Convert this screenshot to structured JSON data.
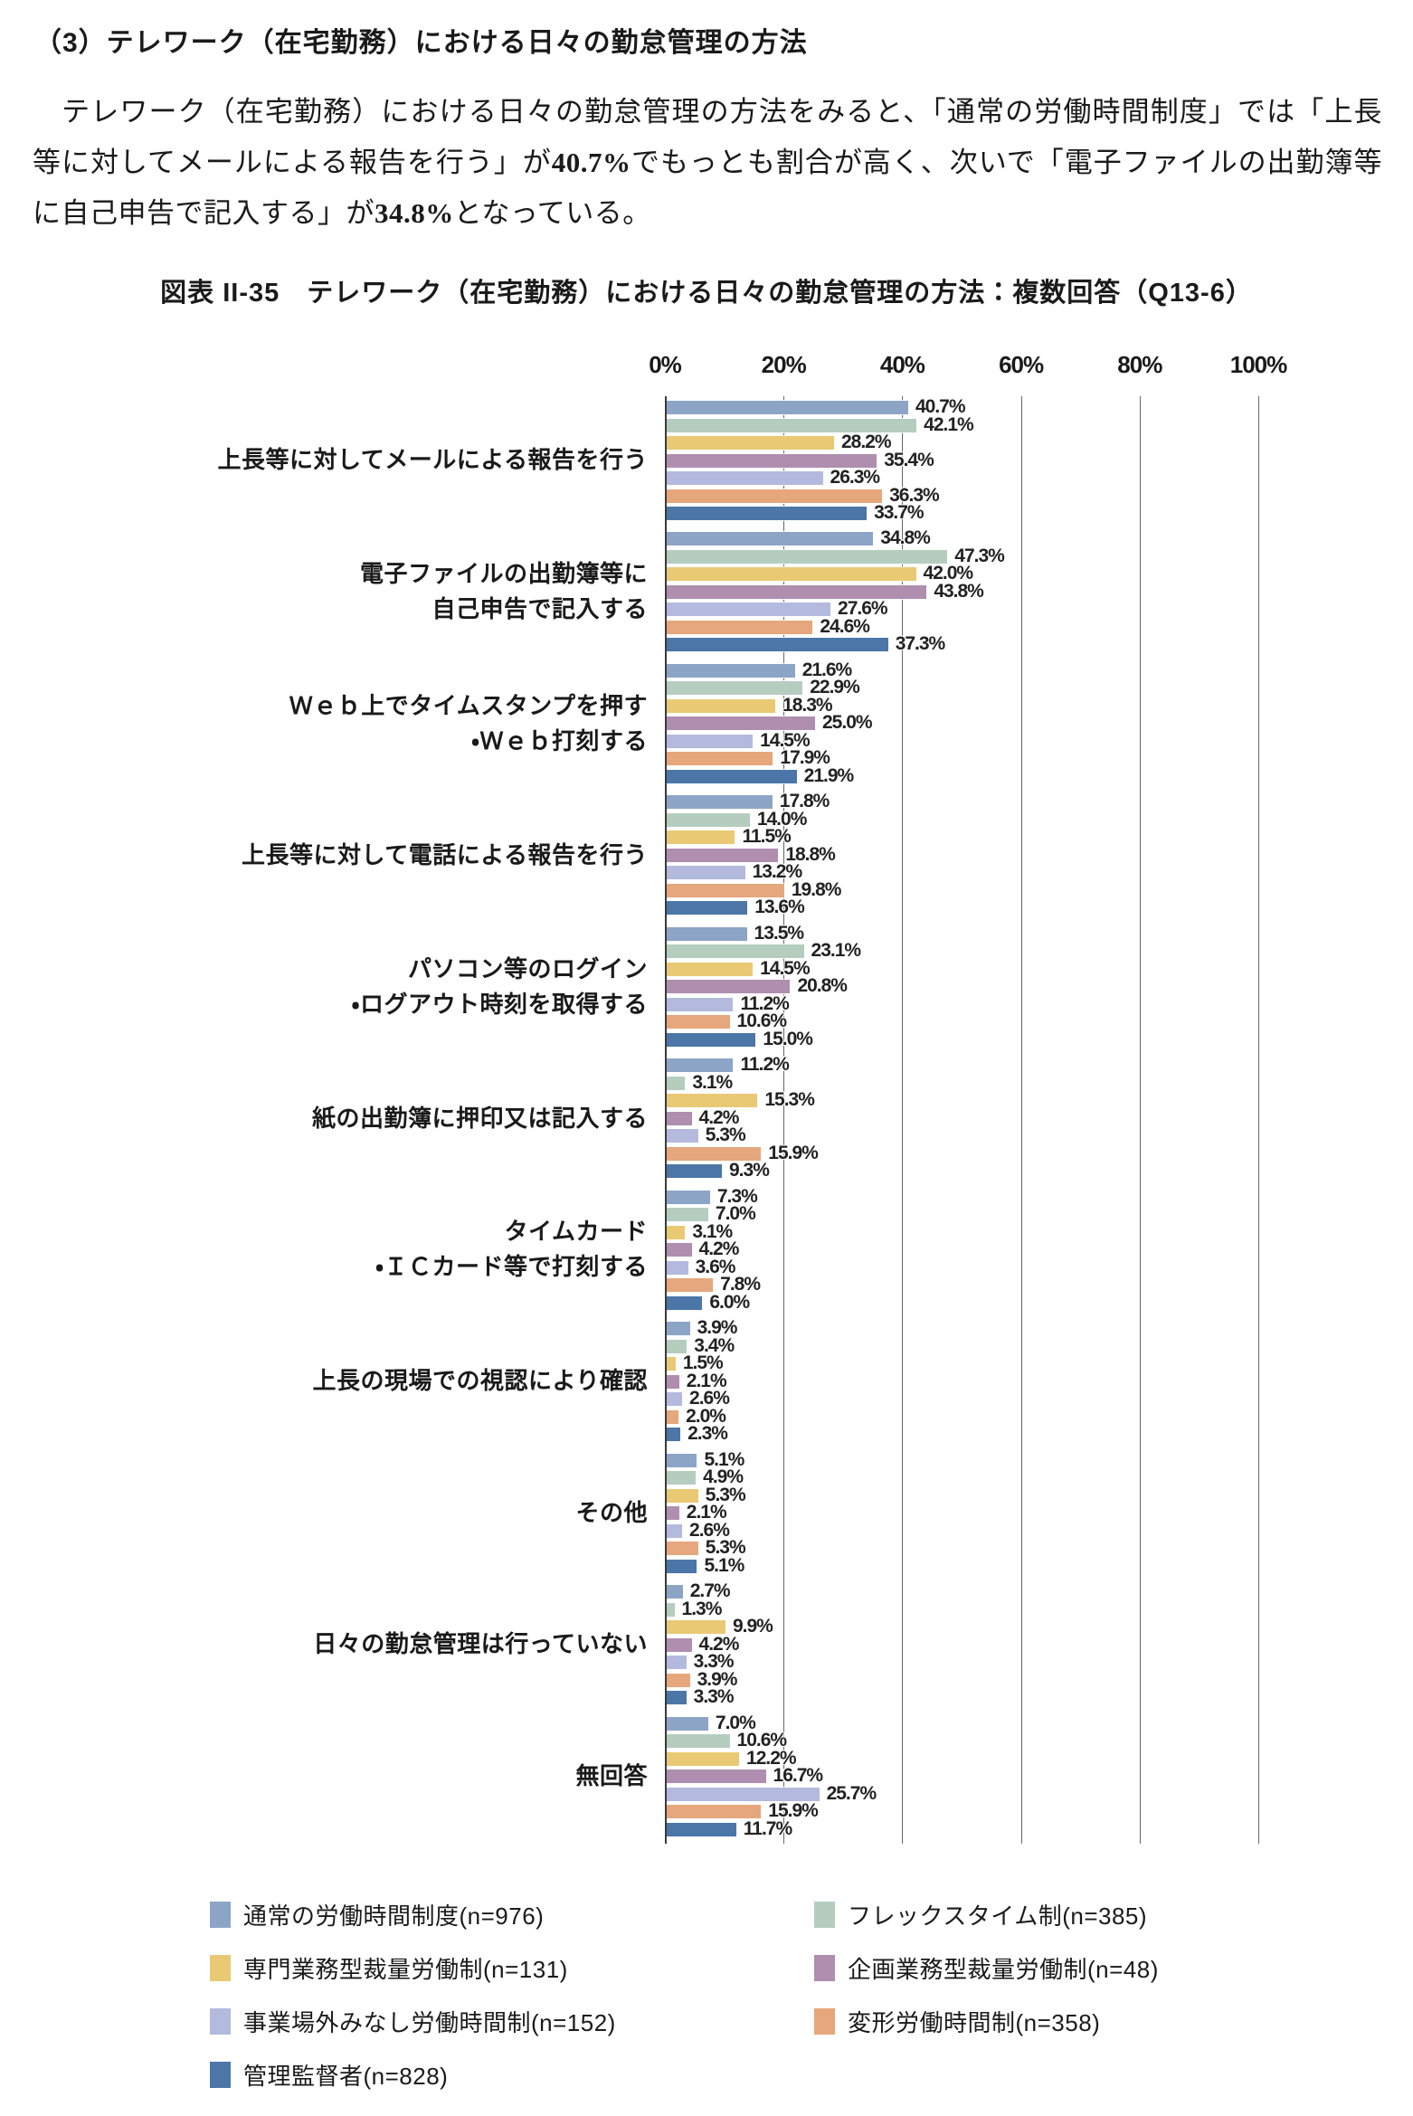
{
  "page": {
    "heading": "（3）テレワーク（在宅勤務）における日々の勤怠管理の方法",
    "paragraph_segments": [
      {
        "text": "　テレワーク（在宅勤務）における日々の勤怠管理の方法をみると、「通常の労働時間制度」では「上長等に対してメールによる報告を行う」が",
        "bold": false
      },
      {
        "text": "40.7%",
        "bold": true
      },
      {
        "text": "でもっとも割合が高く、次いで「電子ファイルの出勤簿等に自己申告で記入する」が",
        "bold": false
      },
      {
        "text": "34.8%",
        "bold": true
      },
      {
        "text": "となっている。",
        "bold": false
      }
    ],
    "figure_title": "図表 II-35　テレワーク（在宅勤務）における日々の勤怠管理の方法：複数回答（Q13-6）"
  },
  "chart_data": {
    "type": "bar",
    "orientation": "horizontal",
    "title": "図表 II-35　テレワーク（在宅勤務）における日々の勤怠管理の方法：複数回答（Q13-6）",
    "x_axis": {
      "min": 0,
      "max": 100,
      "tick_step": 20,
      "ticks": [
        "0%",
        "20%",
        "40%",
        "60%",
        "80%",
        "100%"
      ],
      "grid": true
    },
    "value_suffix": "%",
    "categories": [
      {
        "label": "上長等に対してメールによる報告を行う",
        "lines": [
          "上長等に対してメールによる報告を行う"
        ]
      },
      {
        "label": "電子ファイルの出勤簿等に自己申告で記入する",
        "lines": [
          "電子ファイルの出勤簿等に",
          "自己申告で記入する"
        ]
      },
      {
        "label": "Ｗｅｂ上でタイムスタンプを押す・Ｗｅｂ打刻する",
        "lines": [
          "Ｗｅｂ上でタイムスタンプを押す",
          "・Ｗｅｂ打刻する"
        ]
      },
      {
        "label": "上長等に対して電話による報告を行う",
        "lines": [
          "上長等に対して電話による報告を行う"
        ]
      },
      {
        "label": "パソコン等のログイン・ログアウト時刻を取得する",
        "lines": [
          "パソコン等のログイン",
          "・ログアウト時刻を取得する"
        ]
      },
      {
        "label": "紙の出勤簿に押印又は記入する",
        "lines": [
          "紙の出勤簿に押印又は記入する"
        ]
      },
      {
        "label": "タイムカード・ＩＣカード等で打刻する",
        "lines": [
          "タイムカード",
          "・ＩＣカード等で打刻する"
        ]
      },
      {
        "label": "上長の現場での視認により確認",
        "lines": [
          "上長の現場での視認により確認"
        ]
      },
      {
        "label": "その他",
        "lines": [
          "その他"
        ]
      },
      {
        "label": "日々の勤怠管理は行っていない",
        "lines": [
          "日々の勤怠管理は行っていない"
        ]
      },
      {
        "label": "無回答",
        "lines": [
          "無回答"
        ]
      }
    ],
    "series": [
      {
        "name": "通常の労働時間制度",
        "n": 976,
        "color": "#8CA5C7",
        "values": [
          40.7,
          34.8,
          21.6,
          17.8,
          13.5,
          11.2,
          7.3,
          3.9,
          5.1,
          2.7,
          7.0
        ]
      },
      {
        "name": "フレックスタイム制",
        "n": 385,
        "color": "#B5CDBF",
        "values": [
          42.1,
          47.3,
          22.9,
          14.0,
          23.1,
          3.1,
          7.0,
          3.4,
          4.9,
          1.3,
          10.6
        ]
      },
      {
        "name": "専門業務型裁量労働制",
        "n": 131,
        "color": "#E9C974",
        "values": [
          28.2,
          42.0,
          18.3,
          11.5,
          14.5,
          15.3,
          3.1,
          1.5,
          5.3,
          9.9,
          12.2
        ]
      },
      {
        "name": "企画業務型裁量労働制",
        "n": 48,
        "color": "#AF8EAF",
        "values": [
          35.4,
          43.8,
          25.0,
          18.8,
          20.8,
          4.2,
          4.2,
          2.1,
          2.1,
          4.2,
          16.7
        ]
      },
      {
        "name": "事業場外みなし労働時間制",
        "n": 152,
        "color": "#B3BADD",
        "values": [
          26.3,
          27.6,
          14.5,
          13.2,
          11.2,
          5.3,
          3.6,
          2.6,
          2.6,
          3.3,
          25.7
        ]
      },
      {
        "name": "変形労働時間制",
        "n": 358,
        "color": "#E6A77C",
        "values": [
          36.3,
          24.6,
          17.9,
          19.8,
          10.6,
          15.9,
          7.8,
          2.0,
          5.3,
          3.9,
          15.9
        ]
      },
      {
        "name": "管理監督者",
        "n": 828,
        "color": "#4B76A7",
        "values": [
          33.7,
          37.3,
          21.9,
          13.6,
          15.0,
          9.3,
          6.0,
          2.3,
          5.1,
          3.3,
          11.7
        ]
      }
    ],
    "legend": {
      "columns": 2,
      "position": "bottom",
      "label_format": "{name}(n={n})"
    }
  }
}
